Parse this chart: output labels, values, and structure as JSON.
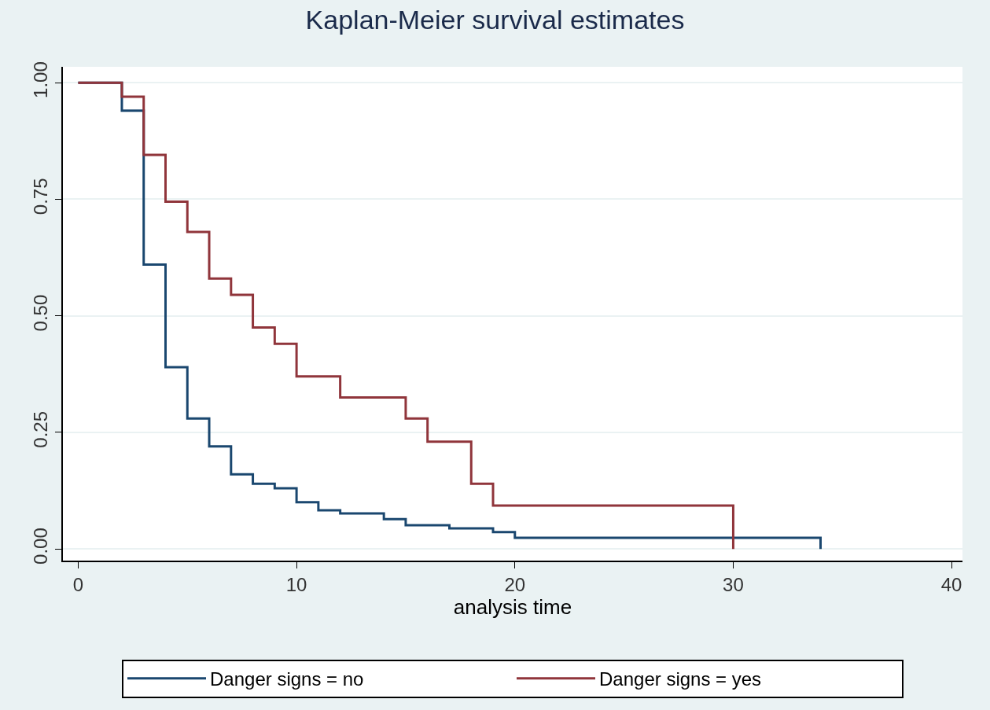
{
  "chart_data": {
    "type": "step",
    "title": "Kaplan-Meier survival estimates",
    "xlabel": "analysis time",
    "series": [
      {
        "name": "Danger signs = no",
        "color": "#1a476f",
        "x": [
          0,
          2,
          3,
          4,
          5,
          6,
          7,
          8,
          9,
          10,
          11,
          12,
          14,
          15,
          17,
          19,
          20,
          34
        ],
        "values": [
          1,
          0.94,
          0.61,
          0.39,
          0.28,
          0.22,
          0.16,
          0.14,
          0.13,
          0.1,
          0.083,
          0.076,
          0.064,
          0.051,
          0.044,
          0.036,
          0.024,
          0
        ]
      },
      {
        "name": "Danger signs = yes",
        "color": "#90353b",
        "x": [
          0,
          2,
          3,
          4,
          5,
          6,
          7,
          8,
          9,
          10,
          12,
          15,
          16,
          18,
          19,
          30
        ],
        "values": [
          1,
          0.97,
          0.845,
          0.745,
          0.68,
          0.58,
          0.545,
          0.475,
          0.44,
          0.37,
          0.325,
          0.28,
          0.23,
          0.14,
          0.093,
          0
        ]
      }
    ],
    "xlim": [
      -0.7,
      40.5
    ],
    "xticks": [
      0,
      10,
      20,
      30,
      40
    ],
    "ylim": [
      -0.025,
      1.034
    ],
    "yticks": [
      {
        "value": 0,
        "label": "0.00"
      },
      {
        "value": 0.25,
        "label": "0.25"
      },
      {
        "value": 0.5,
        "label": "0.50"
      },
      {
        "value": 0.75,
        "label": "0.75"
      },
      {
        "value": 1,
        "label": "1.00"
      }
    ],
    "grid": "y",
    "legend": "bottom",
    "marker": "none",
    "line_style": "solid"
  }
}
